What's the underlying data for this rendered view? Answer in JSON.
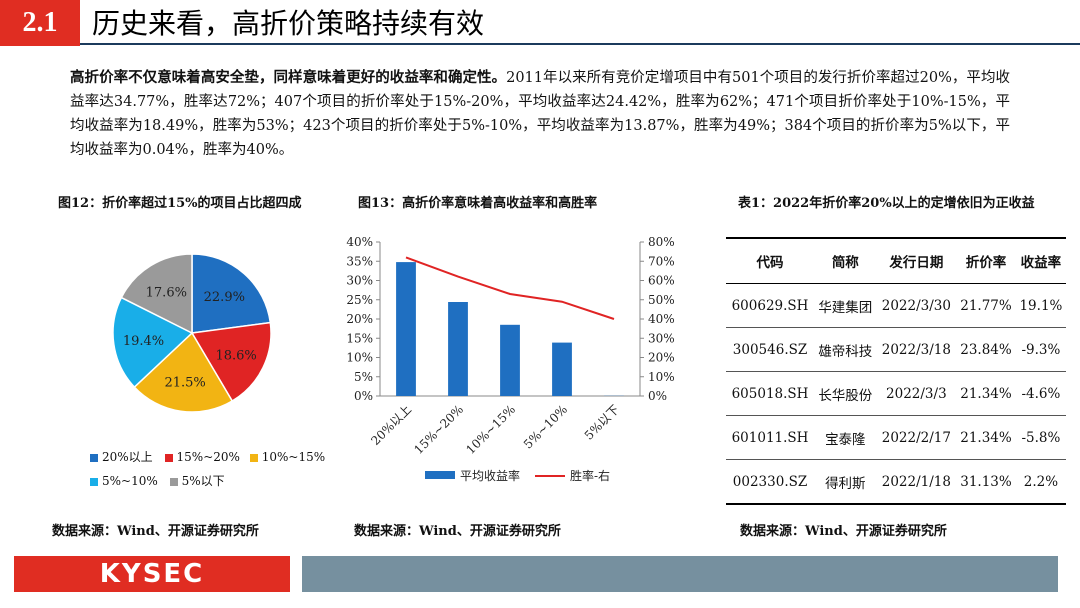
{
  "header": {
    "section_number": "2.1",
    "title": "历史来看，高折价策略持续有效"
  },
  "intro": {
    "bold_lead": "高折价率不仅意味着高安全垫，同样意味着更好的收益率和确定性。",
    "body": "2011年以来所有竞价定增项目中有501个项目的发行折价率超过20%，平均收益率达34.77%，胜率达72%；407个项目的折价率处于15%-20%，平均收益率达24.42%，胜率为62%；471个项目折价率处于10%-15%，平均收益率为18.49%，胜率为53%；423个项目的折价率处于5%-10%，平均收益率为13.87%，胜率为49%；384个项目的折价率为5%以下，平均收益率为0.04%，胜率为40%。"
  },
  "figure12": {
    "caption": "图12：折价率超过15%的项目占比超四成",
    "source": "数据来源：Wind、开源证券研究所",
    "chart_data": {
      "type": "pie",
      "categories": [
        "20%以上",
        "15%~20%",
        "10%~15%",
        "5%~10%",
        "5%以下"
      ],
      "values": [
        22.9,
        18.6,
        21.5,
        19.4,
        17.6
      ],
      "labels": [
        "22.9%",
        "18.6%",
        "21.5%",
        "19.4%",
        "17.6%"
      ],
      "colors": [
        "#1f6fc1",
        "#e02424",
        "#f2b413",
        "#19aee8",
        "#9a9a9a"
      ],
      "legend_position": "bottom"
    }
  },
  "figure13": {
    "caption": "图13：高折价率意味着高收益率和高胜率",
    "source": "数据来源：Wind、开源证券研究所",
    "chart_data": {
      "type": "bar",
      "categories": [
        "20%以上",
        "15%~20%",
        "10%~15%",
        "5%~10%",
        "5%以下"
      ],
      "series": [
        {
          "name": "平均收益率",
          "type": "bar",
          "axis": "left",
          "color": "#1f6fc1",
          "values": [
            34.77,
            24.42,
            18.49,
            13.87,
            0.04
          ]
        },
        {
          "name": "胜率-右",
          "type": "line",
          "axis": "right",
          "color": "#e02424",
          "values": [
            72,
            62,
            53,
            49,
            40
          ]
        }
      ],
      "ylim_left": [
        0,
        40
      ],
      "ylim_right": [
        0,
        80
      ],
      "yticks_left": [
        "0%",
        "5%",
        "10%",
        "15%",
        "20%",
        "25%",
        "30%",
        "35%",
        "40%"
      ],
      "yticks_right": [
        "0%",
        "10%",
        "20%",
        "30%",
        "40%",
        "50%",
        "60%",
        "70%",
        "80%"
      ],
      "legend_position": "bottom"
    }
  },
  "table1": {
    "caption": "表1：2022年折价率20%以上的定增依旧为正收益",
    "source": "数据来源：Wind、开源证券研究所",
    "headers": [
      "代码",
      "简称",
      "发行日期",
      "折价率",
      "收益率"
    ],
    "rows": [
      [
        "600629.SH",
        "华建集团",
        "2022/3/30",
        "21.77%",
        "19.1%"
      ],
      [
        "300546.SZ",
        "雄帝科技",
        "2022/3/18",
        "23.84%",
        "-9.3%"
      ],
      [
        "605018.SH",
        "长华股份",
        "2022/3/3",
        "21.34%",
        "-4.6%"
      ],
      [
        "601011.SH",
        "宝泰隆",
        "2022/2/17",
        "21.34%",
        "-5.8%"
      ],
      [
        "002330.SZ",
        "得利斯",
        "2022/1/18",
        "31.13%",
        "2.2%"
      ]
    ]
  },
  "footer": {
    "logo_text": "KYSEC"
  }
}
